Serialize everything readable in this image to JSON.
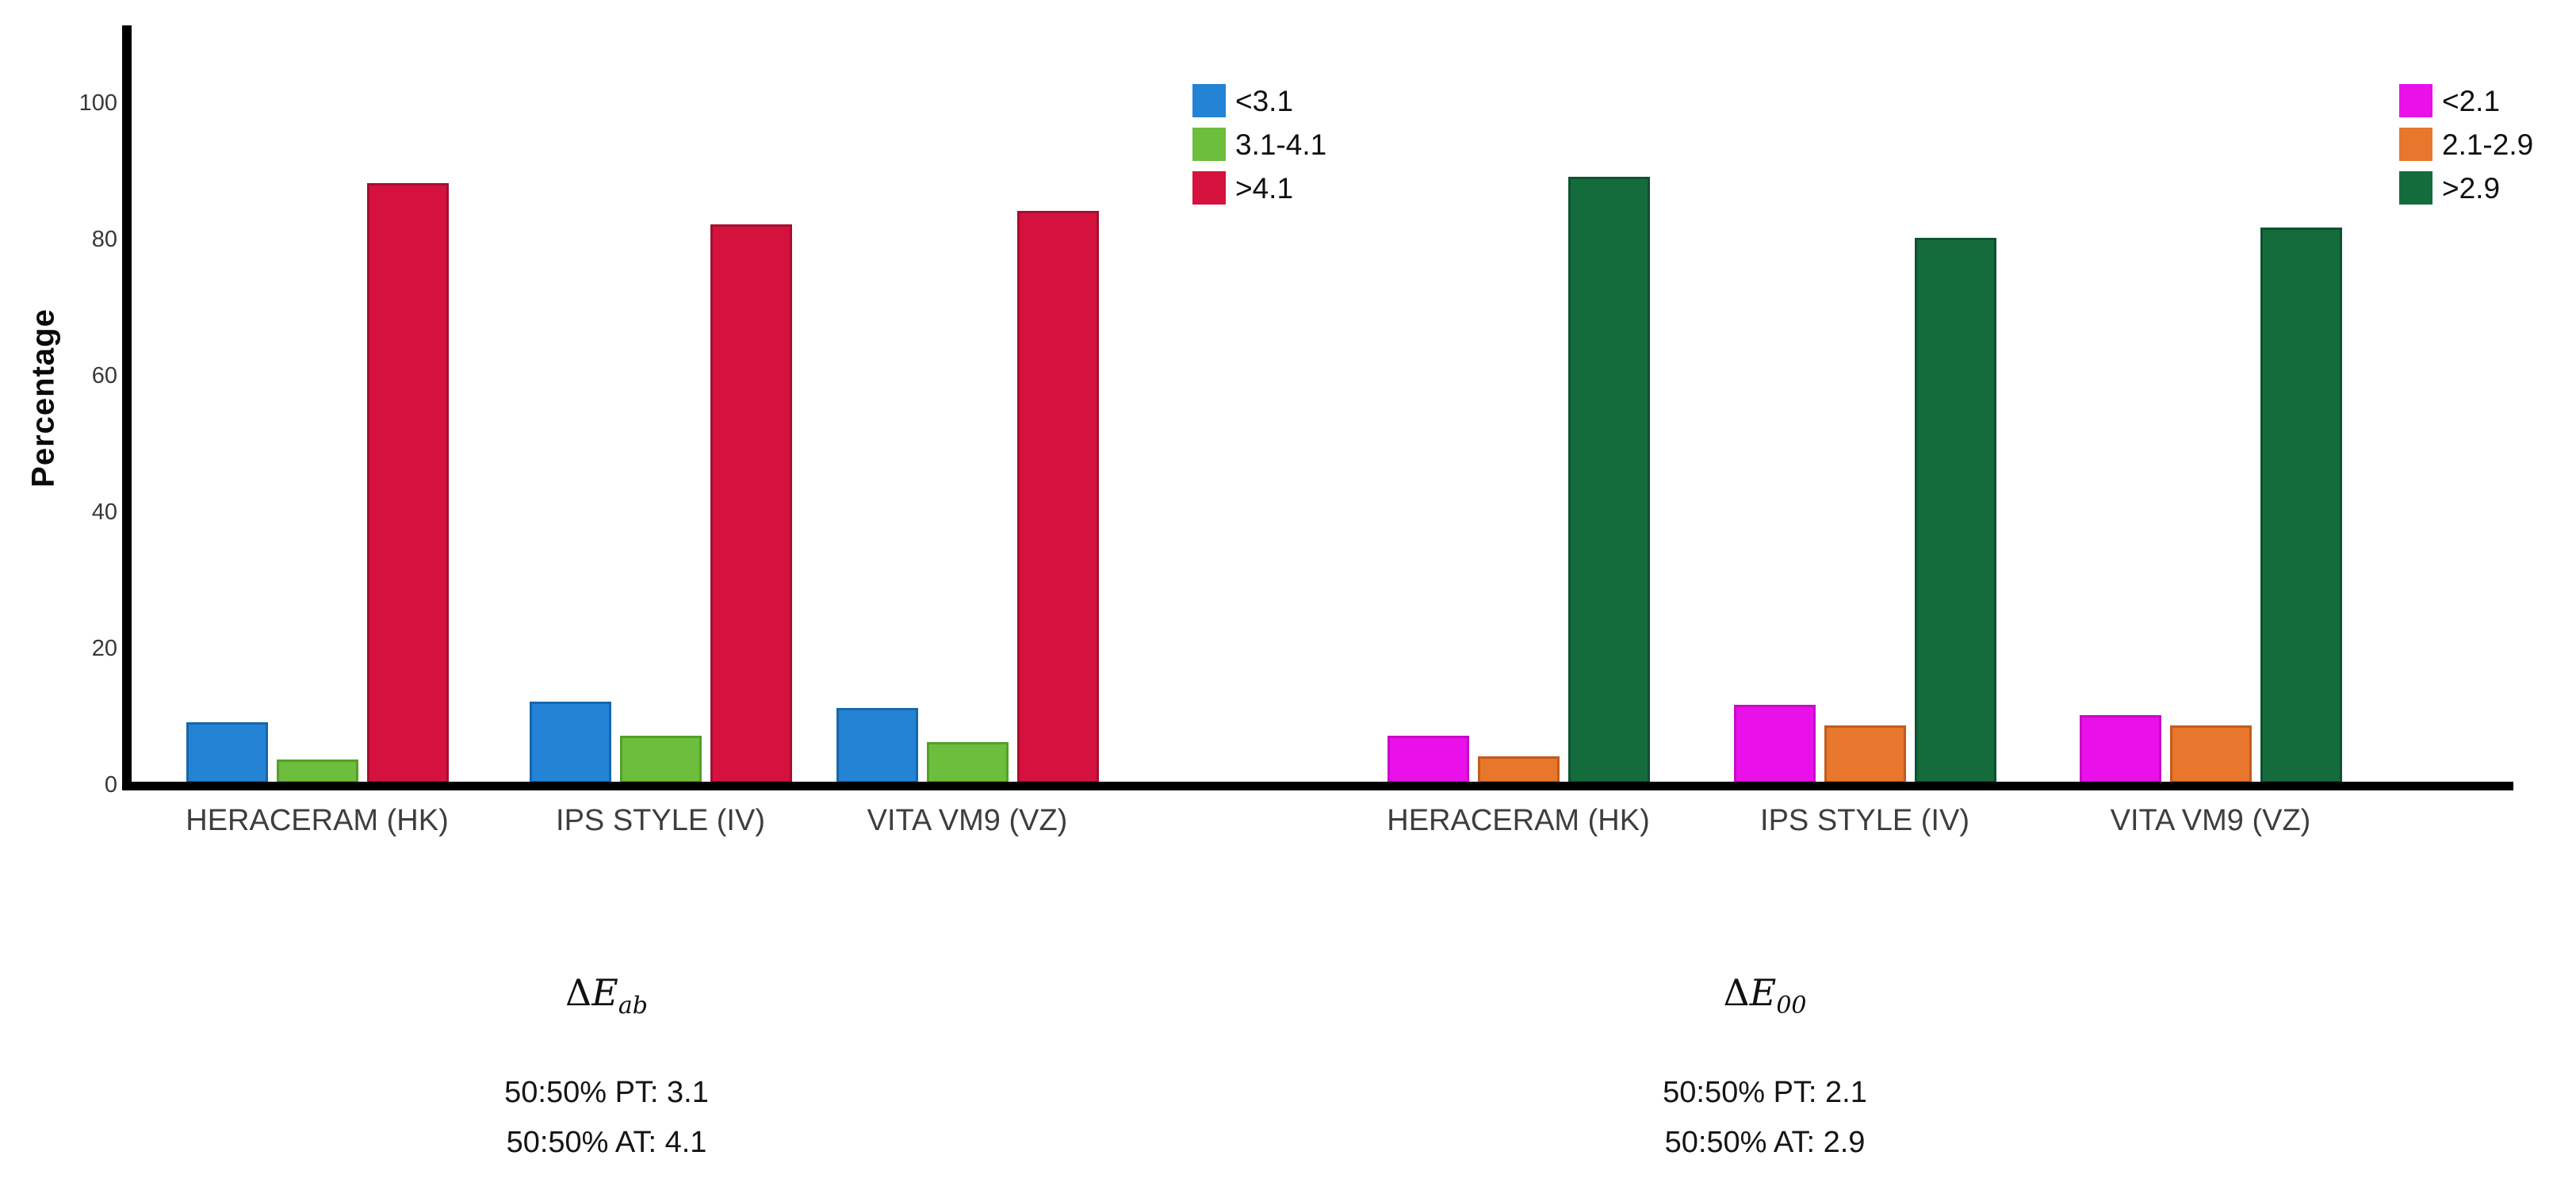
{
  "figure": {
    "background": "#ffffff",
    "axis_color": "#000000",
    "ylabel": "Percentage"
  },
  "y_axis": {
    "ticks": [
      0,
      20,
      40,
      60,
      80,
      100
    ],
    "range": [
      0,
      100
    ]
  },
  "chart_data": [
    {
      "type": "bar",
      "title": "ΔE_ab",
      "ylabel": "Percentage",
      "ylim": [
        0,
        100
      ],
      "grid": false,
      "legend_position": "top-right",
      "categories": [
        "HERACERAM (HK)",
        "IPS STYLE (IV)",
        "VITA VM9 (VZ)"
      ],
      "series": [
        {
          "name": "<3.1",
          "color": "#2483d5",
          "border": "#1667ab",
          "values": [
            9,
            12,
            11
          ]
        },
        {
          "name": "3.1-4.1",
          "color": "#6cbe3c",
          "border": "#53a02a",
          "values": [
            3.5,
            7,
            6
          ]
        },
        {
          "name": ">4.1",
          "color": "#d5123e",
          "border": "#a60e31",
          "values": [
            88,
            82,
            84
          ]
        }
      ]
    },
    {
      "type": "bar",
      "title": "ΔE_00",
      "ylabel": "Percentage",
      "ylim": [
        0,
        100
      ],
      "grid": false,
      "legend_position": "top-right",
      "categories": [
        "HERACERAM (HK)",
        "IPS STYLE (IV)",
        "VITA VM9 (VZ)"
      ],
      "series": [
        {
          "name": "<2.1",
          "color": "#ea10ea",
          "border": "#c50cc5",
          "values": [
            7,
            11.5,
            10
          ]
        },
        {
          "name": "2.1-2.9",
          "color": "#e8762c",
          "border": "#c25c1d",
          "values": [
            4,
            8.5,
            8.5
          ]
        },
        {
          "name": ">2.9",
          "color": "#146c3c",
          "border": "#0d5230",
          "values": [
            89,
            80,
            81.5
          ]
        }
      ]
    }
  ],
  "annotations": [
    {
      "formula": {
        "delta": "Δ",
        "var": "E",
        "sub": "ab"
      },
      "line1": "50:50% PT: 3.1",
      "line2": "50:50% AT: 4.1"
    },
    {
      "formula": {
        "delta": "Δ",
        "var": "E",
        "sub": "00"
      },
      "line1": "50:50% PT: 2.1",
      "line2": "50:50% AT: 2.9"
    }
  ]
}
